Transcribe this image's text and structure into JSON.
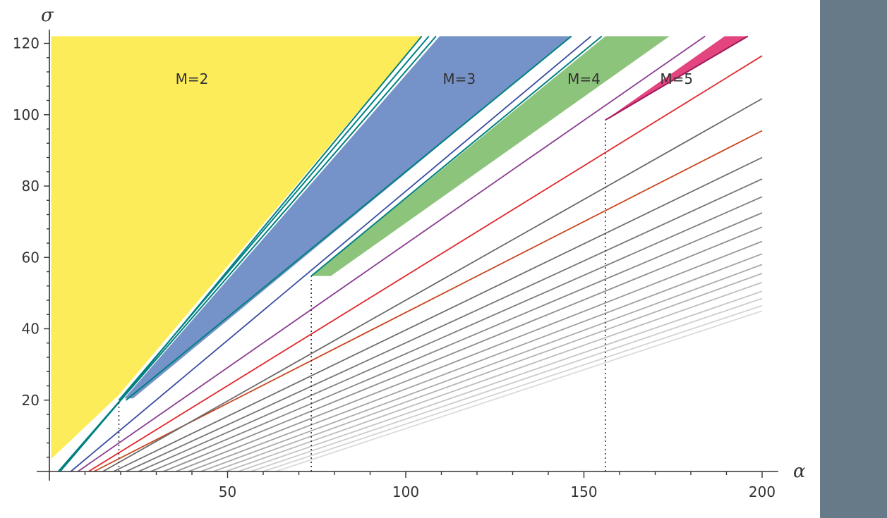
{
  "chart_data": {
    "type": "area",
    "title": "",
    "xlabel": "α",
    "ylabel": "σ",
    "xlim": [
      -0.5,
      204
    ],
    "ylim": [
      0,
      122
    ],
    "xticks": [
      50,
      100,
      150,
      200
    ],
    "yticks": [
      20,
      40,
      60,
      80,
      100,
      120
    ],
    "grid": false,
    "regions": [
      {
        "label": "M=2",
        "color": "#fcec5a",
        "label_pos": [
          40,
          110
        ],
        "polygon": [
          [
            0.5,
            3.5
          ],
          [
            0.5,
            122
          ],
          [
            104.5,
            122
          ],
          [
            19.5,
            21.5
          ]
        ]
      },
      {
        "label": "M=3",
        "color": "#7592c9",
        "label_pos": [
          115,
          110
        ],
        "polygon": [
          [
            21,
            20.5
          ],
          [
            109.5,
            122
          ],
          [
            146.5,
            122
          ],
          [
            23.5,
            20.5
          ]
        ]
      },
      {
        "label": "M=4",
        "color": "#8dc47b",
        "label_pos": [
          150,
          110
        ],
        "polygon": [
          [
            73.5,
            54.8
          ],
          [
            156,
            122
          ],
          [
            174,
            122
          ],
          [
            79,
            54.8
          ]
        ]
      },
      {
        "label": "M=5",
        "color": "#e3457e",
        "label_pos": [
          176,
          110
        ],
        "polygon": [
          [
            156,
            98.5
          ],
          [
            189.5,
            122
          ],
          [
            196,
            122
          ],
          [
            157,
            98.8
          ]
        ]
      }
    ],
    "boundary_lines": [
      {
        "color": "#008080",
        "points": [
          [
            2.5,
            0
          ],
          [
            19.5,
            19.5
          ],
          [
            104.5,
            122
          ]
        ]
      },
      {
        "color": "#008080",
        "points": [
          [
            19.5,
            20
          ],
          [
            106.5,
            122
          ]
        ]
      },
      {
        "color": "#008080",
        "points": [
          [
            3,
            0
          ],
          [
            20.5,
            20.5
          ],
          [
            108.5,
            122
          ]
        ]
      },
      {
        "color": "#008080",
        "points": [
          [
            21.5,
            20
          ],
          [
            146.5,
            122
          ]
        ]
      },
      {
        "color": "#008080",
        "points": [
          [
            73.5,
            54.8
          ],
          [
            155,
            122
          ]
        ]
      },
      {
        "color": "#9e1a5a",
        "points": [
          [
            156,
            98.5
          ],
          [
            196,
            122
          ]
        ]
      }
    ],
    "series": [
      {
        "color": "#3a4ba0",
        "points": [
          [
            6,
            0
          ],
          [
            152,
            122
          ]
        ]
      },
      {
        "color": "#8b3e91",
        "points": [
          [
            8,
            0
          ],
          [
            184,
            122
          ]
        ]
      },
      {
        "color": "#e0282d",
        "points": [
          [
            11,
            0
          ],
          [
            200,
            116.5
          ]
        ]
      },
      {
        "color": "#c8461f",
        "points": [
          [
            12.5,
            0
          ],
          [
            200,
            95.5
          ]
        ]
      },
      {
        "color": "#6a6a6a",
        "points": [
          [
            15,
            0
          ],
          [
            200,
            104.5
          ]
        ]
      },
      {
        "color": "#6f6f6f",
        "points": [
          [
            18,
            0
          ],
          [
            200,
            88
          ]
        ]
      },
      {
        "color": "#777777",
        "points": [
          [
            21.5,
            0
          ],
          [
            200,
            82
          ]
        ]
      },
      {
        "color": "#7f7f7f",
        "points": [
          [
            25,
            0
          ],
          [
            200,
            77
          ]
        ]
      },
      {
        "color": "#878787",
        "points": [
          [
            28.5,
            0
          ],
          [
            200,
            72.5
          ]
        ]
      },
      {
        "color": "#909090",
        "points": [
          [
            32,
            0
          ],
          [
            200,
            68.5
          ]
        ]
      },
      {
        "color": "#999999",
        "points": [
          [
            35.5,
            0
          ],
          [
            200,
            64.5
          ]
        ]
      },
      {
        "color": "#a2a2a2",
        "points": [
          [
            39,
            0
          ],
          [
            200,
            61
          ]
        ]
      },
      {
        "color": "#ababab",
        "points": [
          [
            42.5,
            0
          ],
          [
            200,
            58
          ]
        ]
      },
      {
        "color": "#b4b4b4",
        "points": [
          [
            46,
            0
          ],
          [
            200,
            55.5
          ]
        ]
      },
      {
        "color": "#bdbdbd",
        "points": [
          [
            49.5,
            0
          ],
          [
            200,
            53
          ]
        ]
      },
      {
        "color": "#c5c5c5",
        "points": [
          [
            53,
            0
          ],
          [
            200,
            50.5
          ]
        ]
      },
      {
        "color": "#cdcdcd",
        "points": [
          [
            56.5,
            0
          ],
          [
            200,
            48.5
          ]
        ]
      },
      {
        "color": "#d4d4d4",
        "points": [
          [
            60,
            0
          ],
          [
            200,
            46.5
          ]
        ]
      },
      {
        "color": "#dbdbdb",
        "points": [
          [
            63.5,
            0
          ],
          [
            200,
            45
          ]
        ]
      }
    ],
    "dotted_lines": [
      {
        "x": 19.5,
        "y_top": 19.5
      },
      {
        "x": 73.5,
        "y_top": 54.8
      },
      {
        "x": 156,
        "y_top": 98.5
      }
    ]
  }
}
